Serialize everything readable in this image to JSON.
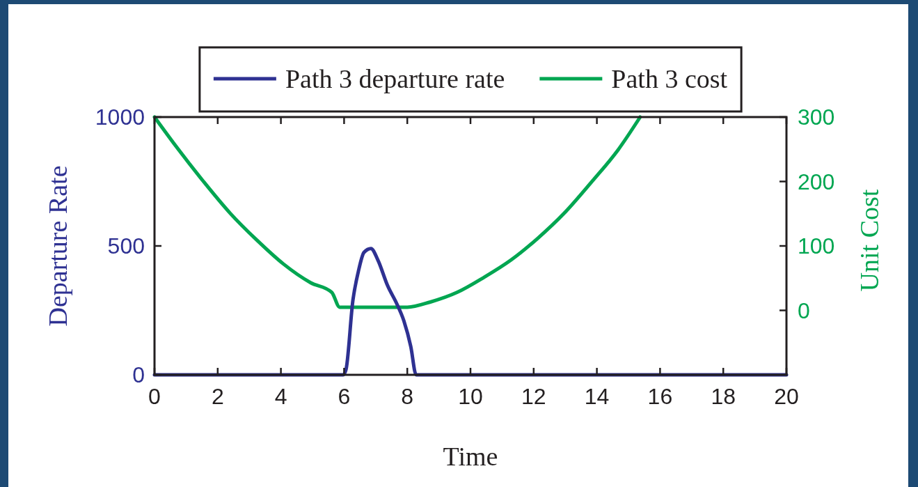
{
  "chart_data": {
    "type": "line",
    "xlabel": "Time",
    "ylabel": "Departure Rate",
    "y2label": "Unit Cost",
    "xlim": [
      0,
      20
    ],
    "xticks": [
      0,
      2,
      4,
      6,
      8,
      10,
      12,
      14,
      16,
      18,
      20
    ],
    "ylim": [
      0,
      1000
    ],
    "yticks": [
      0,
      500,
      1000
    ],
    "y2lim": [
      -100,
      300
    ],
    "y2ticks": [
      0,
      100,
      200,
      300
    ],
    "legend": "top",
    "series": [
      {
        "name": "Path 3 departure rate",
        "color": "#2e3192",
        "x": [
          0,
          5.97,
          6.06,
          6.28,
          6.45,
          6.63,
          6.85,
          7.07,
          7.38,
          7.67,
          7.89,
          8.11,
          8.28,
          20
        ],
        "values": [
          0,
          0,
          20,
          290,
          400,
          475,
          490,
          445,
          345,
          275,
          210,
          110,
          0,
          0
        ]
      },
      {
        "name": "Path 3 cost",
        "color": "#00a651",
        "axis": "y2",
        "x": [
          0,
          0.69,
          1.55,
          2.39,
          3.24,
          4.08,
          4.94,
          5.61,
          5.86,
          8,
          8.73,
          9.58,
          10.42,
          11.28,
          12.11,
          12.97,
          13.81,
          14.67,
          15.37
        ],
        "values": [
          300,
          254,
          200,
          151,
          109,
          72,
          43,
          28,
          5,
          5,
          13,
          28,
          51,
          78,
          111,
          151,
          198,
          249,
          300
        ]
      }
    ]
  }
}
